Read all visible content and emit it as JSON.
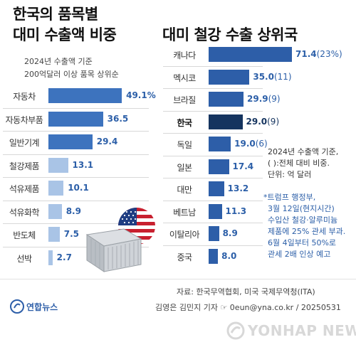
{
  "left": {
    "title_line1": "한국의 품목별",
    "title_line2": "대미 수출액 비중",
    "subtitle_line1": "2024년 수출액 기준",
    "subtitle_line2": "200억달러 이상 품목 상위순"
  },
  "right": {
    "title": "대미 철강 수출 상위국",
    "note_line1": "2024년 수출액 기준,",
    "note_line2": "( ):전체 대비 비중.",
    "note_line3": "단위: 억 달러",
    "note_blue_line1": "*트럼프 행정부,",
    "note_blue_line2": "3월 12일(현지시간)",
    "note_blue_line3": "수입산 철강·알루미늄",
    "note_blue_line4": "제품에 25% 관세 부과.",
    "note_blue_line5": "6월 4일부터 50%로",
    "note_blue_line6": "관세 2배 인상 예고"
  },
  "footer": {
    "source": "자료: 한국무역협회, 미국 국제무역청(ITA)",
    "credit": "김영은 김민지 기자 ☞ 0eun@yna.co.kr / 20250531",
    "logo_text": "연합뉴스",
    "watermark": "YONHAP NEWS"
  },
  "colors": {
    "bar_light": "#a9c4e6",
    "bar_mid": "#3d73be",
    "bar_dark": "#2d5ea8",
    "bar_highlight": "#15345f",
    "value_text": "#2c5fa8"
  },
  "chart_data": [
    {
      "type": "bar",
      "orientation": "horizontal",
      "title": "한국의 품목별 대미 수출액 비중",
      "subtitle": "2024년 수출액 기준 200억달러 이상 품목 상위순",
      "categories": [
        "자동차",
        "자동차부품",
        "일반기계",
        "철강제품",
        "석유제품",
        "석유화학",
        "반도체",
        "선박"
      ],
      "values": [
        49.1,
        36.5,
        29.4,
        13.1,
        10.1,
        8.9,
        7.5,
        2.7
      ],
      "value_labels": [
        "49.1%",
        "36.5",
        "29.4",
        "13.1",
        "10.1",
        "8.9",
        "7.5",
        "2.7"
      ],
      "xlim": [
        0,
        50
      ],
      "grid": false,
      "legend": "none"
    },
    {
      "type": "bar",
      "orientation": "horizontal",
      "title": "대미 철강 수출 상위국",
      "categories": [
        "캐나다",
        "멕시코",
        "브라질",
        "한국",
        "독일",
        "일본",
        "대만",
        "베트남",
        "이탈리아",
        "중국"
      ],
      "values": [
        71.4,
        35.0,
        29.9,
        29.0,
        19.0,
        17.4,
        13.2,
        11.3,
        8.9,
        8.0
      ],
      "value_labels": [
        "71.4",
        "35.0",
        "29.9",
        "29.0",
        "19.0",
        "17.4",
        "13.2",
        "11.3",
        "8.9",
        "8.0"
      ],
      "share_labels": [
        "(23%)",
        "(11)",
        "(9)",
        "(9)",
        "(6)",
        "",
        "",
        "",
        "",
        ""
      ],
      "highlight": "한국",
      "xlim": [
        0,
        72
      ],
      "grid": false,
      "legend": "none"
    }
  ]
}
